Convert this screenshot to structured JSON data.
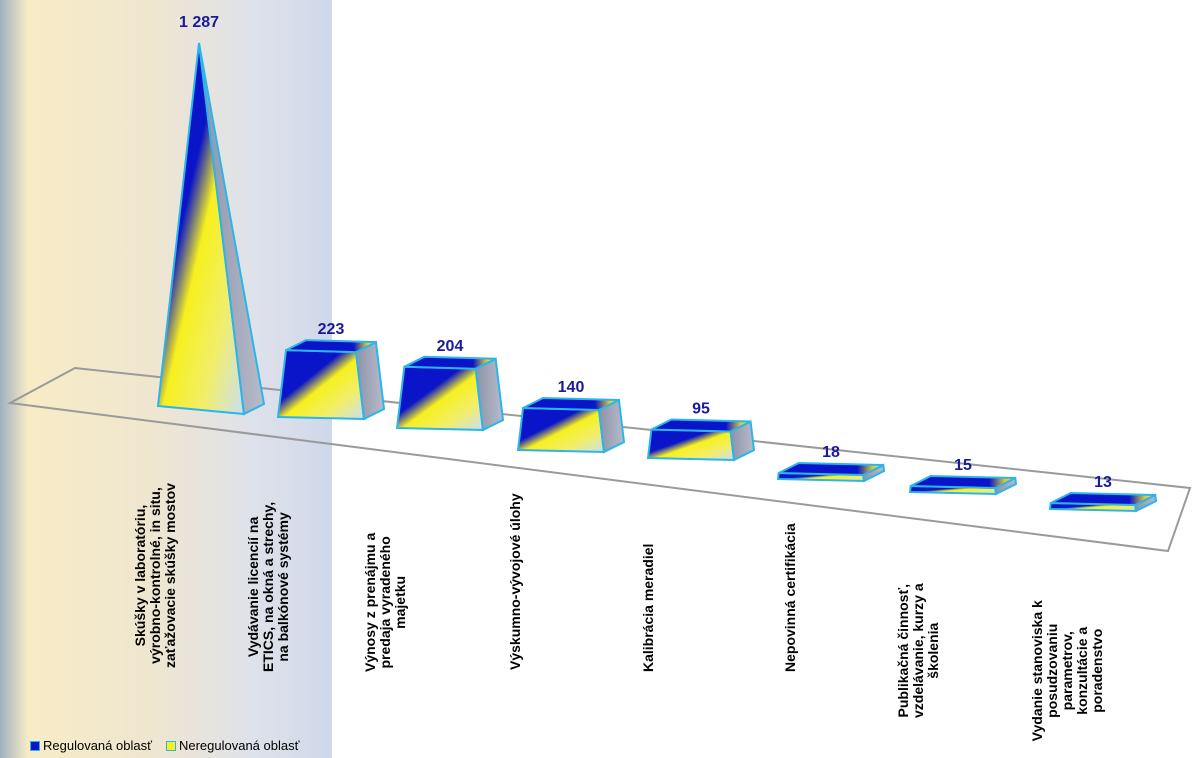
{
  "chart_data": {
    "type": "bar",
    "categories": [
      "Skúšky v laboratóriu,\nvýrobno-kontrolné, in situ,\nzaťažovacie skúšky mostov",
      "Vydávanie licencií  na\nETICS, na okná a strechy,\nna balkónové systémy",
      "Výnosy z prenájmu a\npredaja vyradeného\nmajetku",
      "Výskumno-vývojové úlohy",
      "Kalibrácia meradiel",
      "Nepovinná certifikácia",
      "Publikačná činnosť,\nvzdelávanie, kurzy a\nškolenia",
      "Vydanie stanoviska k\nposudzovaniu parametrov,\nkonzultácie a poradenstvo"
    ],
    "values": [
      1287,
      223,
      204,
      140,
      95,
      18,
      15,
      13
    ],
    "value_labels": [
      "1 287",
      "223",
      "204",
      "140",
      "95",
      "18",
      "15",
      "13"
    ],
    "series": [
      {
        "name": "Regulovaná oblasť",
        "color": "#0a14c8"
      },
      {
        "name": "Neregulovaná oblasť",
        "color": "#f6f01e"
      }
    ],
    "legend": "bottom-left",
    "grid": false
  }
}
